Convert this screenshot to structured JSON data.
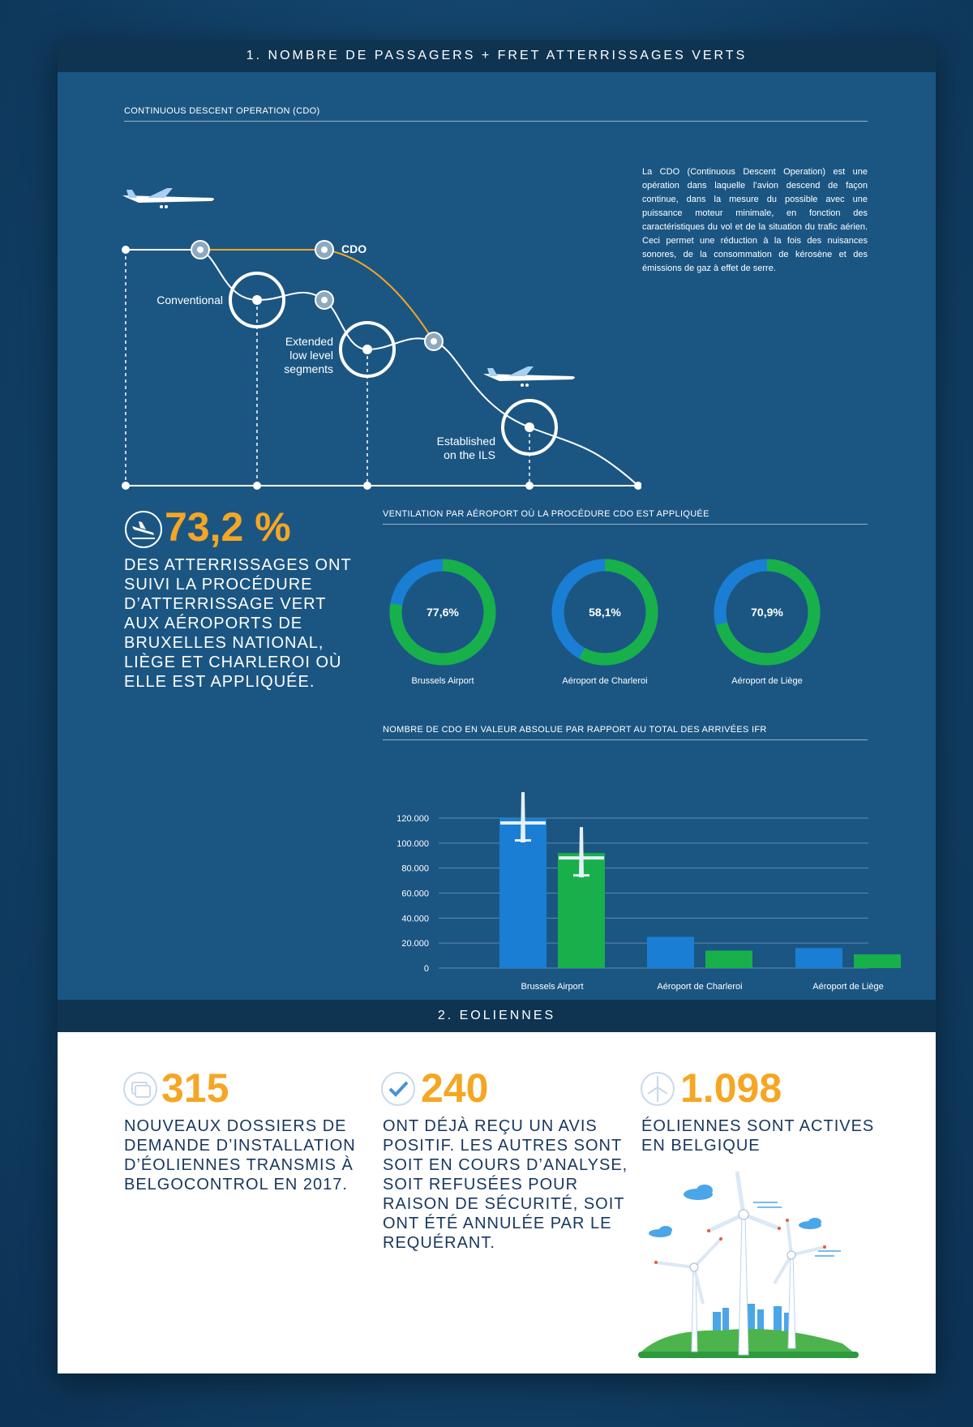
{
  "section1": {
    "title": "1. NOMBRE DE PASSAGERS + FRET ATTERRISSAGES VERTS"
  },
  "cdo_diagram": {
    "heading": "CONTINUOUS DESCENT OPERATION (CDO)",
    "labels": {
      "cdo": "CDO",
      "conventional": "Conventional",
      "extended_1": "Extended",
      "extended_2": "low level",
      "extended_3": "segments",
      "ils_1": "Established",
      "ils_2": "on the ILS"
    },
    "description": "La CDO (Continuous Descent Operation) est une opération dans laquelle l’avion descend de façon continue, dans la mesure du possible avec une puissance moteur minimale, en fonction des caractéristiques du vol et de la situation du trafic aérien. Ceci permet une réduction à la fois des nuisances sonores, de la consommation de kérosène et des émissions de gaz à effet de serre."
  },
  "landing_stat": {
    "value": "73,2 %",
    "icon": "plane-landing-icon",
    "text_lines": [
      "DES ATTERRISSAGES ONT",
      "SUIVI LA PROCÉDURE",
      "D’ATTERRISSAGE VERT",
      "AUX AÉROPORTS DE",
      "BRUXELLES NATIONAL,",
      "LIÈGE ET CHARLEROI OÙ",
      "ELLE EST APPLIQUÉE."
    ]
  },
  "donuts_heading": "VENTILATION PAR AÉROPORT OÙ LA PROCÉDURE CDO EST APPLIQUÉE",
  "bars_heading": "NOMBRE DE CDO EN VALEUR ABSOLUE PAR RAPPORT AU TOTAL DES ARRIVÉES IFR",
  "colors": {
    "blue": "#1a7fd4",
    "green": "#18b04a",
    "orange": "#f5a623",
    "navy": "#17375e"
  },
  "chart_data": [
    {
      "type": "pie",
      "subtype": "donut",
      "series": [
        {
          "name": "Brussels Airport",
          "label": "77,6%",
          "value": 77.6
        },
        {
          "name": "Aéroport de Charleroi",
          "label": "58,1%",
          "value": 58.1
        },
        {
          "name": "Aéroport de Liège",
          "label": "70,9%",
          "value": 70.9
        }
      ]
    },
    {
      "type": "bar",
      "categories": [
        "Brussels Airport",
        "Aéroport de Charleroi",
        "Aéroport de Liège"
      ],
      "series": [
        {
          "values": [
            120000,
            25000,
            16000
          ]
        },
        {
          "values": [
            92000,
            14000,
            11000
          ]
        }
      ],
      "yticks": [
        "120.000",
        "100.000",
        "80.000",
        "60.000",
        "40.000",
        "20.000",
        "0"
      ],
      "ylim": [
        0,
        120000
      ],
      "grid": true
    }
  ],
  "section2": {
    "title": "2. EOLIENNES",
    "stats": [
      {
        "value": "315",
        "icon": "document-stack-icon",
        "text_lines": [
          "NOUVEAUX DOSSIERS DE",
          "DEMANDE D’INSTALLATION",
          "D’ÉOLIENNES TRANSMIS À",
          "BELGOCONTROL EN 2017."
        ]
      },
      {
        "value": "240",
        "icon": "checkmark-icon",
        "text_lines": [
          "ONT DÉJÀ REÇU UN AVIS",
          "POSITIF. LES AUTRES SONT",
          "SOIT EN COURS D’ANALYSE,",
          "SOIT REFUSÉES POUR",
          "RAISON DE SÉCURITÉ, SOIT",
          "ONT ÉTÉ ANNULÉE PAR LE",
          "REQUÉRANT."
        ]
      },
      {
        "value": "1.098",
        "icon": "wind-turbine-icon",
        "text_lines": [
          "ÉOLIENNES SONT ACTIVES",
          "EN BELGIQUE"
        ]
      }
    ]
  }
}
